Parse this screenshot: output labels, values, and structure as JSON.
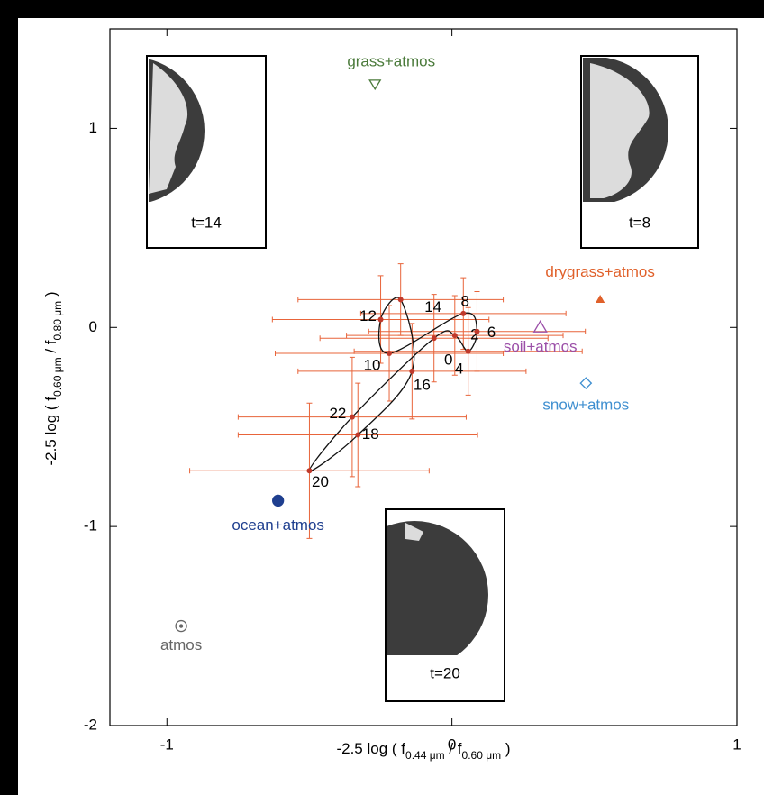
{
  "chart_data": {
    "type": "scatter",
    "x_label_parts": [
      "-2.5 log ( f",
      "0.44 μm",
      "  / f",
      "0.60 μm",
      " )"
    ],
    "y_label_parts": [
      "-2.5 log ( f",
      "0.60 μm",
      "  / f",
      "0.80 μm",
      " )"
    ],
    "xlim": [
      -1.2,
      1
    ],
    "ylim": [
      -2,
      1.5
    ],
    "xticks": [
      -1,
      0,
      1
    ],
    "yticks": [
      -2,
      -1,
      0,
      1
    ],
    "series": [
      {
        "color": "#c0392b",
        "errorbar_color": "#e8643a",
        "line_color": "#111111",
        "labels": [
          "0",
          "2",
          "4",
          "6",
          "8",
          "10",
          "12",
          "14",
          "16",
          "18",
          "20",
          "22"
        ],
        "x": [
          -0.063,
          0.01,
          0.057,
          0.088,
          0.04,
          -0.22,
          -0.25,
          -0.18,
          -0.14,
          -0.33,
          -0.5,
          -0.35
        ],
        "values": [
          -0.054,
          -0.04,
          -0.12,
          -0.02,
          0.07,
          -0.13,
          0.04,
          0.14,
          -0.22,
          -0.54,
          -0.72,
          -0.45
        ],
        "xerr": [
          0.4,
          0.38,
          0.4,
          0.38,
          0.36,
          0.4,
          0.38,
          0.36,
          0.4,
          0.42,
          0.42,
          0.4
        ],
        "yerr": [
          0.22,
          0.2,
          0.22,
          0.2,
          0.18,
          0.24,
          0.22,
          0.18,
          0.24,
          0.26,
          0.34,
          0.3
        ]
      }
    ],
    "references": [
      {
        "name": "grass+atmos",
        "x": -0.27,
        "y": 1.22,
        "marker": "triangle-down",
        "color": "#4a7a3a"
      },
      {
        "name": "drygrass+atmos",
        "x": 0.52,
        "y": 0.14,
        "marker": "triangle-filled",
        "color": "#e0602a"
      },
      {
        "name": "soil+atmos",
        "x": 0.31,
        "y": 0,
        "marker": "triangle",
        "color": "#9b4fa8"
      },
      {
        "name": "snow+atmos",
        "x": 0.47,
        "y": -0.28,
        "marker": "diamond",
        "color": "#3f8fd0"
      },
      {
        "name": "ocean+atmos",
        "x": -0.61,
        "y": -0.87,
        "marker": "circle-filled",
        "color": "#1f3f8f"
      },
      {
        "name": "atmos",
        "x": -0.95,
        "y": -1.5,
        "marker": "circle-dot",
        "color": "#666666"
      }
    ],
    "insets": [
      {
        "label": "t=14"
      },
      {
        "label": "t=8"
      },
      {
        "label": "t=20"
      }
    ]
  }
}
